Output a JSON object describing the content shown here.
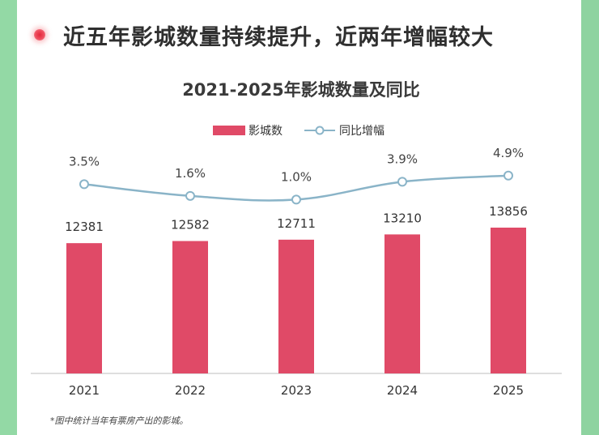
{
  "heading": {
    "text": "近五年影城数量持续提升，近两年增幅较大"
  },
  "chart_data": {
    "type": "bar",
    "title": "2021-2025年影城数量及同比",
    "categories": [
      "2021",
      "2022",
      "2023",
      "2024",
      "2025"
    ],
    "series": [
      {
        "name": "影城数",
        "kind": "bar",
        "color": "#e04a67",
        "values": [
          12381,
          12582,
          12711,
          13210,
          13856
        ],
        "labels": [
          "12381",
          "12582",
          "12711",
          "13210",
          "13856"
        ]
      },
      {
        "name": "同比增幅",
        "kind": "line",
        "color": "#8ab4c8",
        "values": [
          3.5,
          1.6,
          1.0,
          3.9,
          4.9
        ],
        "labels": [
          "3.5%",
          "1.6%",
          "1.0%",
          "3.9%",
          "4.9%"
        ]
      }
    ],
    "legend_position": "top-center",
    "grid": false
  },
  "footnote": "*图中统计当年有票房产出的影城。"
}
